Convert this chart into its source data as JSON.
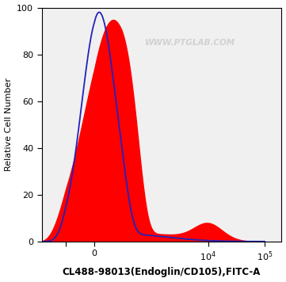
{
  "ylabel": "Relative Cell Number",
  "xlabel": "CL488-98013(Endoglin/CD105),FITC-A",
  "ylim": [
    0,
    100
  ],
  "watermark": "WWW.PTGLAB.COM",
  "blue_line_color": "#2222bb",
  "red_fill_color": "#ff0000",
  "background_color": "#ffffff",
  "plot_bg_color": "#f0f0f0",
  "yticks": [
    0,
    20,
    40,
    60,
    80,
    100
  ],
  "xtick_labels": [
    "",
    "0",
    "",
    "10^4",
    "10^5"
  ]
}
